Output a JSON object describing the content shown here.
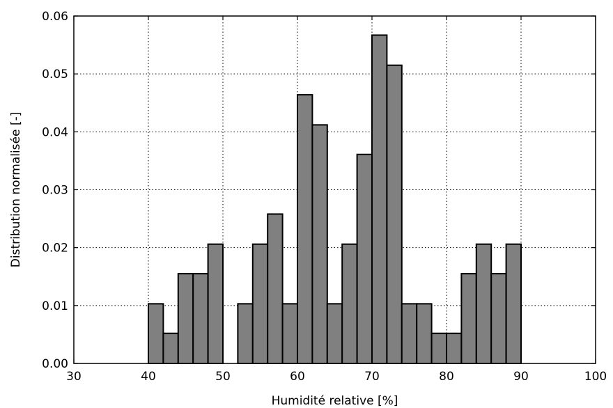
{
  "chart_data": {
    "type": "bar",
    "title": "",
    "xlabel": "Humidité relative [%]",
    "ylabel": "Distribution normalisée [-]",
    "xlim": [
      30,
      100
    ],
    "ylim": [
      0,
      0.06
    ],
    "xticks": [
      "30",
      "40",
      "50",
      "60",
      "70",
      "80",
      "90",
      "100"
    ],
    "yticks": [
      "0.00",
      "0.01",
      "0.02",
      "0.03",
      "0.04",
      "0.05",
      "0.06"
    ],
    "grid": true,
    "bar_color": "#808080",
    "bin_width": 2,
    "bins": [
      {
        "x0": 40,
        "x1": 42,
        "value": 0.0103
      },
      {
        "x0": 42,
        "x1": 44,
        "value": 0.0052
      },
      {
        "x0": 44,
        "x1": 46,
        "value": 0.0155
      },
      {
        "x0": 46,
        "x1": 48,
        "value": 0.0155
      },
      {
        "x0": 48,
        "x1": 50,
        "value": 0.0206
      },
      {
        "x0": 50,
        "x1": 52,
        "value": 0.0
      },
      {
        "x0": 52,
        "x1": 54,
        "value": 0.0103
      },
      {
        "x0": 54,
        "x1": 56,
        "value": 0.0206
      },
      {
        "x0": 56,
        "x1": 58,
        "value": 0.0258
      },
      {
        "x0": 58,
        "x1": 60,
        "value": 0.0103
      },
      {
        "x0": 60,
        "x1": 62,
        "value": 0.0464
      },
      {
        "x0": 62,
        "x1": 64,
        "value": 0.0412
      },
      {
        "x0": 64,
        "x1": 66,
        "value": 0.0103
      },
      {
        "x0": 66,
        "x1": 68,
        "value": 0.0206
      },
      {
        "x0": 68,
        "x1": 70,
        "value": 0.0361
      },
      {
        "x0": 70,
        "x1": 72,
        "value": 0.0567
      },
      {
        "x0": 72,
        "x1": 74,
        "value": 0.0515
      },
      {
        "x0": 74,
        "x1": 76,
        "value": 0.0103
      },
      {
        "x0": 76,
        "x1": 78,
        "value": 0.0103
      },
      {
        "x0": 78,
        "x1": 80,
        "value": 0.0052
      },
      {
        "x0": 80,
        "x1": 82,
        "value": 0.0052
      },
      {
        "x0": 82,
        "x1": 84,
        "value": 0.0155
      },
      {
        "x0": 84,
        "x1": 86,
        "value": 0.0206
      },
      {
        "x0": 86,
        "x1": 88,
        "value": 0.0155
      },
      {
        "x0": 88,
        "x1": 90,
        "value": 0.0206
      }
    ]
  }
}
